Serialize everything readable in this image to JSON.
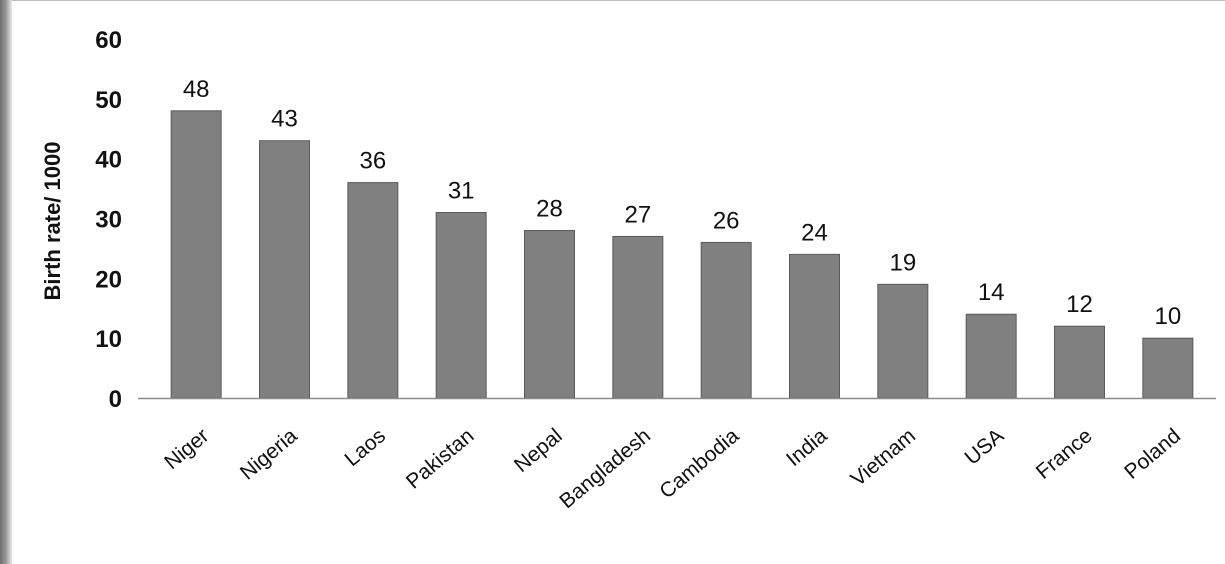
{
  "chart_data": {
    "type": "bar",
    "title": "",
    "xlabel": "",
    "ylabel": "Birth rate/ 1000",
    "ylim": [
      0,
      60
    ],
    "yticks": [
      0,
      10,
      20,
      30,
      40,
      50,
      60
    ],
    "grid": false,
    "categories": [
      "Niger",
      "Nigeria",
      "Laos",
      "Pakistan",
      "Nepal",
      "Bangladesh",
      "Cambodia",
      "India",
      "Vietnam",
      "USA",
      "France",
      "Poland"
    ],
    "values": [
      48,
      43,
      36,
      31,
      28,
      27,
      26,
      24,
      19,
      14,
      12,
      10
    ],
    "data_labels": true,
    "colors": {
      "bar": "#808080",
      "bar_edge": "#5a5a5a",
      "axis": "#8c8c8c",
      "text": "#111111"
    }
  }
}
